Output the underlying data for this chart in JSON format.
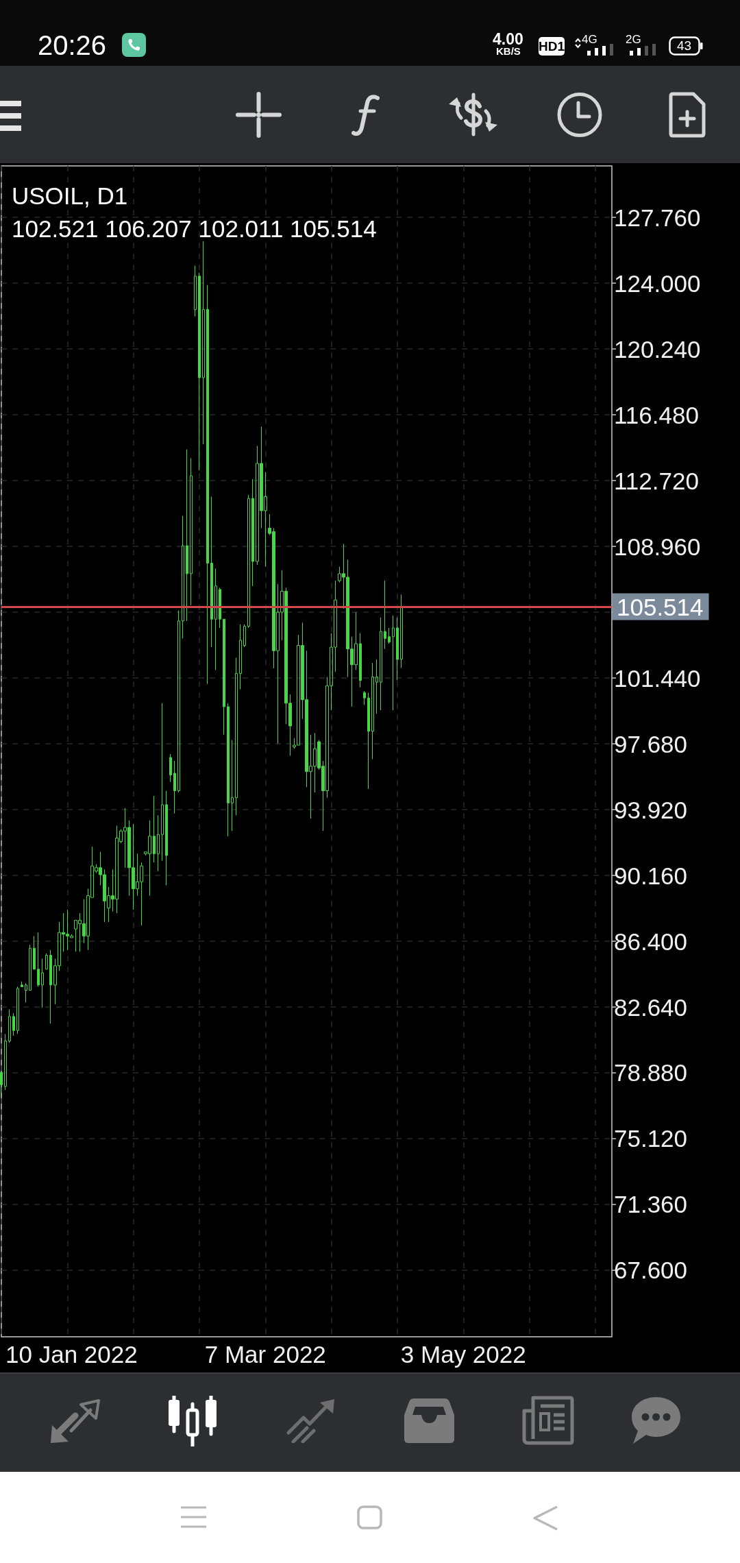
{
  "chart_data": {
    "type": "candlestick",
    "title": "USOIL, D1",
    "subtitle": "102.521 106.207 102.011 105.514",
    "categories": [
      null,
      null,
      null,
      null,
      null,
      null,
      null,
      null,
      null,
      null,
      null,
      null,
      null,
      null,
      null,
      null,
      null,
      "10 Jan 2022",
      null,
      null,
      null,
      null,
      null,
      null,
      null,
      null,
      null,
      null,
      null,
      null,
      null,
      null,
      null,
      null,
      null,
      null,
      null,
      null,
      null,
      null,
      null,
      null,
      null,
      null,
      null,
      null,
      null,
      null,
      null,
      null,
      null,
      null,
      null,
      null,
      null,
      null,
      null,
      null,
      null,
      null,
      null,
      null,
      null,
      null,
      "7 Mar 2022",
      null,
      null,
      null,
      null,
      null,
      null,
      null,
      null,
      null,
      null,
      null,
      null,
      null,
      null,
      null,
      null,
      null,
      null,
      null,
      null,
      null,
      null,
      null,
      null,
      null,
      null,
      null,
      null,
      null,
      null,
      null,
      null,
      null,
      null,
      null,
      null,
      null,
      null,
      null,
      null,
      null,
      null,
      null,
      null,
      null,
      null,
      null,
      "3 May 2022",
      null,
      null,
      null,
      null,
      null,
      null,
      null,
      null,
      null,
      null,
      null,
      null,
      null,
      null,
      null,
      null,
      null,
      null,
      null,
      null,
      null,
      null,
      null,
      null,
      null,
      null,
      null,
      null,
      null,
      null,
      null,
      null,
      null,
      null,
      null,
      null
    ],
    "ohlc": [
      [
        78.9,
        79.0,
        77.5,
        78.2
      ],
      [
        78.1,
        81.1,
        77.9,
        80.7
      ],
      [
        80.7,
        82.5,
        80.6,
        82.1
      ],
      [
        82.1,
        82.3,
        81.0,
        81.3
      ],
      [
        81.3,
        83.8,
        81.1,
        83.7
      ],
      [
        83.9,
        84.1,
        83.8,
        83.8
      ],
      [
        83.6,
        84.0,
        82.9,
        83.9
      ],
      [
        83.6,
        86.2,
        83.6,
        86.0
      ],
      [
        86.0,
        86.7,
        84.8,
        84.8
      ],
      [
        84.8,
        86.9,
        83.8,
        83.9
      ],
      [
        83.9,
        85.4,
        82.6,
        84.6
      ],
      [
        84.8,
        85.7,
        84.8,
        85.6
      ],
      [
        85.6,
        85.9,
        81.7,
        83.9
      ],
      [
        83.9,
        85.4,
        82.8,
        85.0
      ],
      [
        85.0,
        87.5,
        84.7,
        86.9
      ],
      [
        86.9,
        88.0,
        85.8,
        86.8
      ],
      [
        86.8,
        88.2,
        85.9,
        86.7
      ],
      [
        86.6,
        86.8,
        86.6,
        86.7
      ],
      [
        87.1,
        87.6,
        85.8,
        87.6
      ],
      [
        87.4,
        88.0,
        85.8,
        87.6
      ],
      [
        87.4,
        88.8,
        86.3,
        86.7
      ],
      [
        86.7,
        89.4,
        85.9,
        89.0
      ],
      [
        88.9,
        91.8,
        88.9,
        90.7
      ],
      [
        90.4,
        90.8,
        90.3,
        90.6
      ],
      [
        90.6,
        91.5,
        89.6,
        90.2
      ],
      [
        90.2,
        90.5,
        87.5,
        88.7
      ],
      [
        88.3,
        89.5,
        87.5,
        89.0
      ],
      [
        89.0,
        90.5,
        88.1,
        88.8
      ],
      [
        88.8,
        93.0,
        88.0,
        92.3
      ],
      [
        92.1,
        92.8,
        92.0,
        92.7
      ],
      [
        92.7,
        94.0,
        90.6,
        92.9
      ],
      [
        92.9,
        93.3,
        89.0,
        90.6
      ],
      [
        90.6,
        93.1,
        88.2,
        89.4
      ],
      [
        89.4,
        91.4,
        89.0,
        89.8
      ],
      [
        89.8,
        90.9,
        87.3,
        90.7
      ],
      [
        91.4,
        91.5,
        91.3,
        91.5
      ],
      [
        91.4,
        93.3,
        89.0,
        92.4
      ],
      [
        92.4,
        94.7,
        90.9,
        91.4
      ],
      [
        91.4,
        93.6,
        90.4,
        92.5
      ],
      [
        92.5,
        100.0,
        91.0,
        94.2
      ],
      [
        94.2,
        95.0,
        89.6,
        91.3
      ],
      [
        96.9,
        97.1,
        95.5,
        95.9
      ],
      [
        96.0,
        96.7,
        93.7,
        95.0
      ],
      [
        95.0,
        105.3,
        94.9,
        104.7
      ],
      [
        104.7,
        110.7,
        103.7,
        109.0
      ],
      [
        109.0,
        114.5,
        104.7,
        107.4
      ],
      [
        107.4,
        114.0,
        105.6,
        113.0
      ],
      [
        122.5,
        125.0,
        122.1,
        124.4
      ],
      [
        124.4,
        124.6,
        113.3,
        118.6
      ],
      [
        118.6,
        126.4,
        114.8,
        122.5
      ],
      [
        122.5,
        123.9,
        101.1,
        108.0
      ],
      [
        108.0,
        111.8,
        103.2,
        104.8
      ],
      [
        104.8,
        107.7,
        101.9,
        106.7
      ],
      [
        106.5,
        106.6,
        104.3,
        104.8
      ],
      [
        104.8,
        104.8,
        98.2,
        99.8
      ],
      [
        99.8,
        100.0,
        92.4,
        94.3
      ],
      [
        94.3,
        97.9,
        92.7,
        94.6
      ],
      [
        94.6,
        102.6,
        93.6,
        101.7
      ],
      [
        101.7,
        104.5,
        100.8,
        103.6
      ],
      [
        103.3,
        104.5,
        103.2,
        104.4
      ],
      [
        104.4,
        111.9,
        104.3,
        111.7
      ],
      [
        111.7,
        112.8,
        106.7,
        108.1
      ],
      [
        108.1,
        114.7,
        107.9,
        113.7
      ],
      [
        113.7,
        115.8,
        110.0,
        111.0
      ],
      [
        111.0,
        113.2,
        107.8,
        111.8
      ],
      [
        110.0,
        110.8,
        109.6,
        109.7
      ],
      [
        109.8,
        110.0,
        102.0,
        103.0
      ],
      [
        103.0,
        106.8,
        97.7,
        105.2
      ],
      [
        105.2,
        107.6,
        103.6,
        106.4
      ],
      [
        106.4,
        106.6,
        98.8,
        100.0
      ],
      [
        100.0,
        100.5,
        97.0,
        98.7
      ],
      [
        97.5,
        98.0,
        97.4,
        97.6
      ],
      [
        97.6,
        103.9,
        97.6,
        103.3
      ],
      [
        103.3,
        104.6,
        99.1,
        100.2
      ],
      [
        100.2,
        103.0,
        95.2,
        96.1
      ],
      [
        96.1,
        98.2,
        93.4,
        96.4
      ],
      [
        96.4,
        98.3,
        94.9,
        97.4
      ],
      [
        97.8,
        97.9,
        96.2,
        96.3
      ],
      [
        96.4,
        96.7,
        92.7,
        95.0
      ],
      [
        95.0,
        101.5,
        94.6,
        101.0
      ],
      [
        101.0,
        104.0,
        99.6,
        103.2
      ],
      [
        103.2,
        107.0,
        101.8,
        105.9
      ],
      [
        107.0,
        107.8,
        106.9,
        107.4
      ],
      [
        107.4,
        109.1,
        105.4,
        107.2
      ],
      [
        107.2,
        108.2,
        101.5,
        103.1
      ],
      [
        103.1,
        103.8,
        99.8,
        102.2
      ],
      [
        102.2,
        105.2,
        101.9,
        103.4
      ],
      [
        103.4,
        104.0,
        100.9,
        101.3
      ],
      [
        100.6,
        100.7,
        99.9,
        100.3
      ],
      [
        100.3,
        100.6,
        95.1,
        98.4
      ],
      [
        98.4,
        102.3,
        96.8,
        101.5
      ],
      [
        101.2,
        102.5,
        99.4,
        101.5
      ],
      [
        101.2,
        104.9,
        99.6,
        104.1
      ],
      [
        104.1,
        107.0,
        103.1,
        103.7
      ],
      [
        103.8,
        104.3,
        103.4,
        103.5
      ],
      [
        103.8,
        105.0,
        99.6,
        104.3
      ],
      [
        104.3,
        104.9,
        101.3,
        102.5
      ],
      [
        102.521,
        106.207,
        102.011,
        105.514
      ],
      null,
      null,
      null,
      null,
      null,
      null,
      null,
      null,
      null,
      null,
      null,
      null,
      null,
      null,
      null,
      null,
      null,
      null,
      null,
      null,
      null,
      null,
      null,
      null,
      null,
      null,
      null,
      null,
      null,
      null,
      null,
      null,
      null,
      null,
      null,
      null,
      null,
      null,
      null,
      null,
      null,
      null,
      null,
      null,
      null,
      null,
      null,
      null,
      null,
      null,
      null
    ],
    "color": "#46d646",
    "ylim": [
      63.8,
      130.7
    ],
    "yticks": [
      {
        "value": 67.6,
        "label": "67.600"
      },
      {
        "value": 71.36,
        "label": "71.360"
      },
      {
        "value": 75.12,
        "label": "75.120"
      },
      {
        "value": 78.88,
        "label": "78.880"
      },
      {
        "value": 82.64,
        "label": "82.640"
      },
      {
        "value": 86.4,
        "label": "86.400"
      },
      {
        "value": 90.16,
        "label": "90.160"
      },
      {
        "value": 93.92,
        "label": "93.920"
      },
      {
        "value": 97.68,
        "label": "97.680"
      },
      {
        "value": 101.44,
        "label": "101.440"
      },
      {
        "value": 105.2,
        "label": null
      },
      {
        "value": 108.96,
        "label": "108.960"
      },
      {
        "value": 112.72,
        "label": "112.720"
      },
      {
        "value": 116.48,
        "label": "116.480"
      },
      {
        "value": 120.24,
        "label": "120.240"
      },
      {
        "value": 124.0,
        "label": "124.000"
      },
      {
        "value": 127.76,
        "label": "127.760"
      }
    ],
    "grid": true,
    "ref_lines": [
      {
        "axis": "y",
        "value": 105.514,
        "label": "105.514",
        "color": "#d24848"
      }
    ],
    "annotations": [
      "20:26",
      "4.00",
      "KB/S",
      "HD1",
      "4G",
      "2G",
      "43"
    ]
  }
}
